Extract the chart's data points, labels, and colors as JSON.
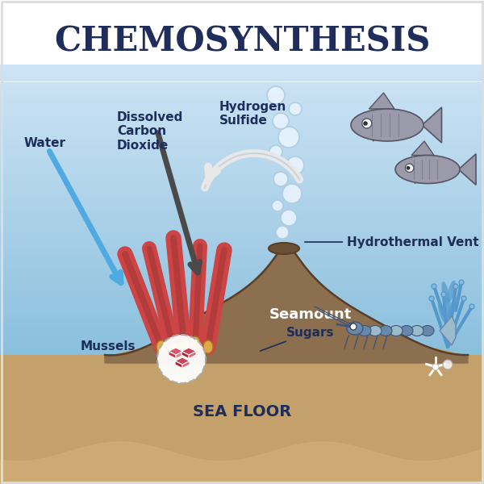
{
  "title": "CHEMOSYNTHESIS",
  "title_color": "#1e2d5a",
  "bg_color": "#ffffff",
  "water_color_top": "#cde4f5",
  "water_color_bottom": "#7db8d8",
  "seafloor_color": "#c4a06a",
  "seafloor_wave_color": "#d4b07a",
  "seamount_color": "#8b6f4e",
  "seamount_edge": "#5a3e28",
  "label_color": "#1e2d5a",
  "arrow_water_color": "#4eaae0",
  "arrow_co2_color": "#4a4a4a",
  "arrow_h2s_color": "#e8e8e8",
  "bubble_fill": "#e8f4ff",
  "bubble_edge": "#b0cce0",
  "mussel_tube_red": "#cc4444",
  "mussel_tube_dark": "#993333",
  "mussel_base_yellow": "#ddaa44",
  "mussel_gem_white": "#f0f0f0",
  "mussel_gem_red": "#cc4455",
  "mussel_gem_dark": "#aa2233",
  "fish_color": "#9a9aaa",
  "fish_edge": "#555566",
  "shrimp_body": "#6688aa",
  "shrimp_stripe": "#99bbcc",
  "coral_color": "#5599cc",
  "coral_light": "#88bbdd",
  "star_color": "#ddddee",
  "labels": {
    "dissolved_co2": "Dissolved\nCarbon\nDioxide",
    "hydrogen_sulfide": "Hydrogen\nSulfide",
    "water": "Water",
    "hydrothermal_vent": "Hydrothermal Vent",
    "seamount": "Seamount",
    "mussels": "Mussels",
    "sugars": "Sugars",
    "sea_floor": "SEA FLOOR"
  }
}
